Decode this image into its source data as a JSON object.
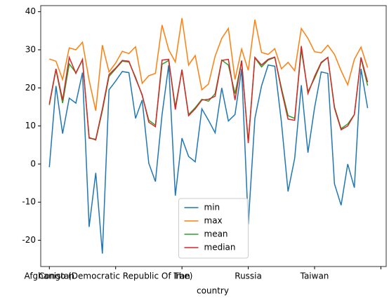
{
  "chart_data": {
    "type": "line",
    "xlabel": "country",
    "categories": [
      "Afghanistan",
      null,
      null,
      null,
      null,
      null,
      null,
      null,
      null,
      null,
      "Congo (Democratic Republic Of The)",
      null,
      null,
      null,
      null,
      null,
      null,
      null,
      null,
      null,
      "Iran",
      null,
      null,
      null,
      null,
      null,
      null,
      null,
      null,
      null,
      "Russia",
      null,
      null,
      null,
      null,
      null,
      null,
      null,
      null,
      null,
      "Taiwan",
      null,
      null,
      null,
      null,
      null,
      null,
      null,
      null
    ],
    "xlim": [
      -1.3,
      50.8
    ],
    "xticks": [
      0,
      10,
      20,
      30,
      40,
      50
    ],
    "ylim": [
      -26.9,
      41.6
    ],
    "yticks": [
      -20,
      -10,
      0,
      10,
      20,
      30,
      40
    ],
    "legend": "lower center",
    "series": [
      {
        "name": "min",
        "color": "#1f77b4",
        "values": [
          -0.8,
          20.5,
          8,
          17.3,
          16,
          24,
          -16.5,
          -2.3,
          -23.5,
          19.5,
          21.8,
          24.3,
          24,
          12,
          16.8,
          0.2,
          -4.6,
          13,
          26,
          -8.3,
          6.8,
          2,
          0.6,
          14.5,
          11.5,
          8.2,
          20,
          11.3,
          13,
          25,
          -15.8,
          12,
          20.5,
          26,
          25.7,
          11,
          -7.2,
          1.5,
          20.7,
          3,
          14.8,
          24.2,
          23.8,
          -5.2,
          -10.8,
          0,
          -6.2,
          25,
          14.7
        ]
      },
      {
        "name": "max",
        "color": "#ff7f0e",
        "values": [
          27.6,
          27,
          22.2,
          30.5,
          30,
          32,
          22,
          14,
          31.2,
          24.2,
          26.5,
          29.6,
          29,
          30.8,
          21.2,
          23.2,
          23.8,
          36.5,
          30,
          26.8,
          38.3,
          26,
          28.5,
          19.5,
          21,
          28.3,
          33,
          35.6,
          22.2,
          30.2,
          24.6,
          37.9,
          29.3,
          28.8,
          30.3,
          25,
          26.7,
          24.5,
          35.6,
          33,
          29.5,
          29.2,
          31.2,
          28.8,
          24.5,
          20.8,
          27.5,
          30.7,
          25.3
        ]
      },
      {
        "name": "mean",
        "color": "#2ca02c",
        "values": [
          15.5,
          24.8,
          16,
          26.3,
          24,
          27.3,
          7,
          6.3,
          14,
          23,
          25,
          27,
          26.8,
          22.8,
          18,
          11.5,
          10.2,
          26.2,
          27.2,
          15,
          24.6,
          13,
          14.8,
          17,
          16.5,
          18.5,
          27.3,
          26,
          18.5,
          27,
          5.8,
          27.9,
          25.5,
          27.3,
          28,
          20,
          12.7,
          12,
          30,
          19,
          22.5,
          26.5,
          28,
          15,
          9.3,
          10.5,
          13,
          27.8,
          20.6
        ]
      },
      {
        "name": "median",
        "color": "#d62728",
        "values": [
          15.8,
          25,
          16.8,
          28,
          23.8,
          27.5,
          6.8,
          6.5,
          14.5,
          23.5,
          25.2,
          27.2,
          27,
          22.5,
          18.2,
          11,
          9.8,
          27.3,
          27.5,
          14.3,
          24.8,
          12.7,
          14.5,
          16.8,
          17,
          17.8,
          27.2,
          27.5,
          16.8,
          27.2,
          5.5,
          28,
          26,
          27.5,
          28.1,
          19.5,
          11.8,
          11.5,
          31,
          18.5,
          23,
          26.7,
          28,
          14.7,
          9,
          10,
          13,
          28,
          21.5
        ]
      }
    ]
  }
}
